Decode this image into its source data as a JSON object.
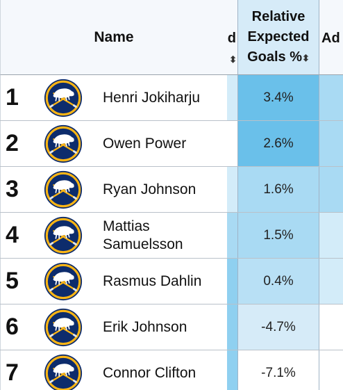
{
  "header": {
    "name": "Name",
    "clipped_left": "d",
    "metric": [
      "Relative",
      "Expected",
      "Goals %"
    ],
    "clipped_right": "Ad",
    "sort_glyph": "⬍"
  },
  "icons": {
    "team_logo": "buffalo-sabres-logo-icon"
  },
  "colors": {
    "strong": "#6ac0ea",
    "mid": "#8fd0f0",
    "light": "#b8e0f5",
    "pale": "#d6ebf8",
    "faint": "#e6f3fb"
  },
  "rows": [
    {
      "rank": "1",
      "name": "Henri Jokiharju",
      "value": "3.4%",
      "strip": "#d3ecf9",
      "fill": "#6ac0ea",
      "ad": "#a9daf3"
    },
    {
      "rank": "2",
      "name": "Owen Power",
      "value": "2.6%",
      "strip": "#ffffff",
      "fill": "#6ac0ea",
      "ad": "#a9daf3"
    },
    {
      "rank": "3",
      "name": "Ryan Johnson",
      "value": "1.6%",
      "strip": "#d3ecf9",
      "fill": "#a9daf3",
      "ad": "#a9daf3"
    },
    {
      "rank": "4",
      "name": "Mattias Samuelsson",
      "value": "1.5%",
      "strip": "#a9daf3",
      "fill": "#a9daf3",
      "ad": "#d3ecf9"
    },
    {
      "rank": "5",
      "name": "Rasmus Dahlin",
      "value": "0.4%",
      "strip": "#8fd0f0",
      "fill": "#b8e0f5",
      "ad": "#d3ecf9"
    },
    {
      "rank": "6",
      "name": "Erik Johnson",
      "value": "-4.7%",
      "strip": "#8fd0f0",
      "fill": "#d6ebf8",
      "ad": "#ffffff"
    },
    {
      "rank": "7",
      "name": "Connor Clifton",
      "value": "-7.1%",
      "strip": "#8fd0f0",
      "fill": "#ffffff",
      "ad": "#ffffff"
    }
  ]
}
